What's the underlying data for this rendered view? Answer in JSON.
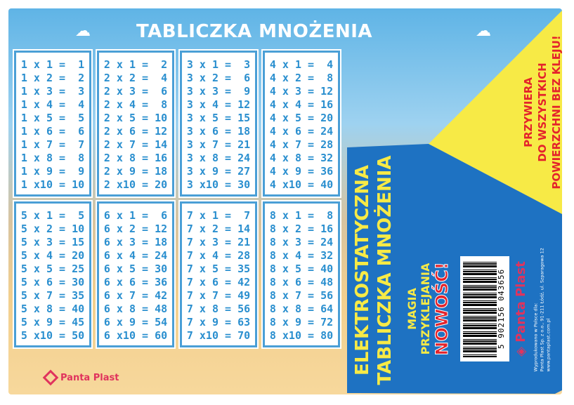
{
  "title": "TABLICZKA MNOŻENIA",
  "tables": [
    [
      "1 x 1 =  1",
      "1 x 2 =  2",
      "1 x 3 =  3",
      "1 x 4 =  4",
      "1 x 5 =  5",
      "1 x 6 =  6",
      "1 x 7 =  7",
      "1 x 8 =  8",
      "1 x 9 =  9",
      "1 x10 = 10"
    ],
    [
      "2 x 1 =  2",
      "2 x 2 =  4",
      "2 x 3 =  6",
      "2 x 4 =  8",
      "2 x 5 = 10",
      "2 x 6 = 12",
      "2 x 7 = 14",
      "2 x 8 = 16",
      "2 x 9 = 18",
      "2 x10 = 20"
    ],
    [
      "3 x 1 =  3",
      "3 x 2 =  6",
      "3 x 3 =  9",
      "3 x 4 = 12",
      "3 x 5 = 15",
      "3 x 6 = 18",
      "3 x 7 = 21",
      "3 x 8 = 24",
      "3 x 9 = 27",
      "3 x10 = 30"
    ],
    [
      "4 x 1 =  4",
      "4 x 2 =  8",
      "4 x 3 = 12",
      "4 x 4 = 16",
      "4 x 5 = 20",
      "4 x 6 = 24",
      "4 x 7 = 28",
      "4 x 8 = 32",
      "4 x 9 = 36",
      "4 x10 = 40"
    ],
    [
      "5 x 1 =  5",
      "5 x 2 = 10",
      "5 x 3 = 15",
      "5 x 4 = 20",
      "5 x 5 = 25",
      "5 x 6 = 30",
      "5 x 7 = 35",
      "5 x 8 = 40",
      "5 x 9 = 45",
      "5 x10 = 50"
    ],
    [
      "6 x 1 =  6",
      "6 x 2 = 12",
      "6 x 3 = 18",
      "6 x 4 = 24",
      "6 x 5 = 30",
      "6 x 6 = 36",
      "6 x 7 = 42",
      "6 x 8 = 48",
      "6 x 9 = 54",
      "6 x10 = 60"
    ],
    [
      "7 x 1 =  7",
      "7 x 2 = 14",
      "7 x 3 = 21",
      "7 x 4 = 28",
      "7 x 5 = 35",
      "7 x 6 = 42",
      "7 x 7 = 49",
      "7 x 8 = 56",
      "7 x 9 = 63",
      "7 x10 = 70"
    ],
    [
      "8 x 1 =  8",
      "8 x 2 = 16",
      "8 x 3 = 24",
      "8 x 4 = 32",
      "8 x 5 = 40",
      "8 x 6 = 48",
      "8 x 7 = 56",
      "8 x 8 = 64",
      "8 x 9 = 72",
      "8 x10 = 80"
    ]
  ],
  "brand": "Panta Plast",
  "overlay": {
    "headline1": "ELEKTROSTATYCZNA",
    "headline2": "TABLICZKA MNOŻENIA",
    "tagline1": "MAGIA",
    "tagline2": "PRZYKLEJANIA",
    "new": "NOWOŚĆ!",
    "claim1": "PRZYWIERA",
    "claim2": "DO WSZYSTKICH",
    "claim3": "POWIERZCHNI BEZ KLEJU!",
    "barcode": "5 902156 043656",
    "address1": "Wyprodukowano w Polsce dla:",
    "address2": "Panta Plast Sp. z o.o., 91-211 Łódź, ul. Szparagowa 12",
    "address3": "www.pantaplast.com.pl"
  },
  "colors": {
    "blue": "#1e72c2",
    "yellow": "#f7ea46",
    "red": "#e4232b",
    "digits": "#2a8fcf"
  }
}
